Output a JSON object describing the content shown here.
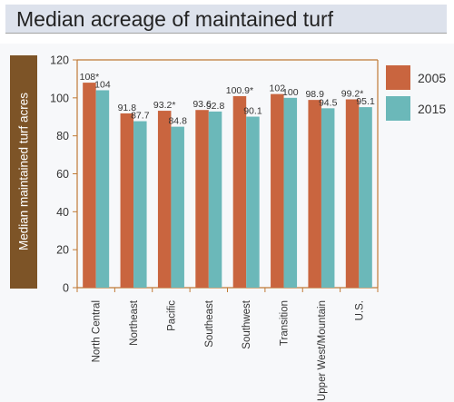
{
  "title": "Median acreage of maintained turf",
  "chart_data": {
    "type": "bar",
    "title": "Median acreage of maintained turf",
    "xlabel": "",
    "ylabel": "Median maintained turf acres",
    "ylim": [
      0,
      120
    ],
    "y_ticks": [
      0,
      20,
      40,
      60,
      80,
      100,
      120
    ],
    "grid": false,
    "legend_position": "right",
    "categories": [
      "North Central",
      "Northeast",
      "Pacific",
      "Southeast",
      "Southwest",
      "Transition",
      "Upper West/Mountain",
      "U.S."
    ],
    "series": [
      {
        "name": "2005",
        "color": "#c9653f",
        "values": [
          108,
          91.8,
          93.2,
          93.6,
          100.9,
          102,
          98.9,
          99.2
        ],
        "labels": [
          "108*",
          "91.8",
          "93.2*",
          "93.6",
          "100.9*",
          "102",
          "98.9",
          "99.2*"
        ]
      },
      {
        "name": "2015",
        "color": "#6bb8b9",
        "values": [
          104,
          87.7,
          84.8,
          92.8,
          90.1,
          100,
          94.5,
          95.1
        ],
        "labels": [
          "104",
          "87.7",
          "84.8",
          "92.8",
          "90.1",
          "100",
          "94.5",
          "95.1"
        ]
      }
    ],
    "frame_color": "#c07a36"
  }
}
